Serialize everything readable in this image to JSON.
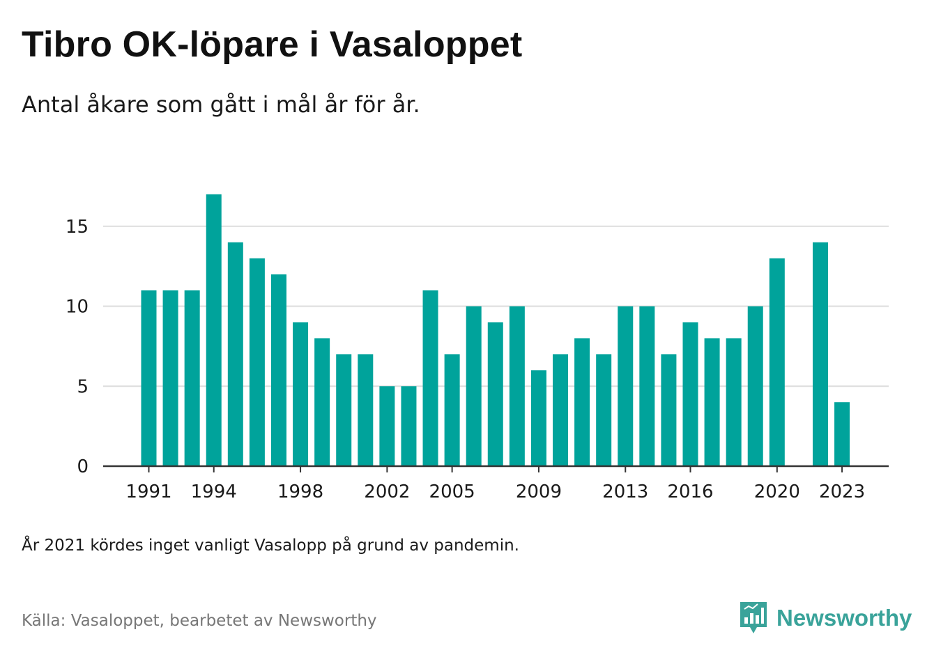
{
  "title": "Tibro OK-löpare i Vasaloppet",
  "subtitle": "Antal åkare som gått i mål år för år.",
  "note": "År 2021 kördes inget vanligt Vasalopp på grund av pandemin.",
  "source": "Källa: Vasaloppet, bearbetet av Newsworthy",
  "brand": {
    "name": "Newsworthy",
    "icon": "newsworthy-logo-icon",
    "color": "#3aa39a"
  },
  "chart_data": {
    "type": "bar",
    "title": "Tibro OK-löpare i Vasaloppet",
    "subtitle": "Antal åkare som gått i mål år för år.",
    "xlabel": "",
    "ylabel": "",
    "bar_color": "#00a39b",
    "grid": true,
    "ylim": [
      0,
      17
    ],
    "yticks": [
      0,
      5,
      10,
      15
    ],
    "xticks": [
      "1991",
      "1994",
      "1998",
      "2002",
      "2005",
      "2009",
      "2013",
      "2016",
      "2020",
      "2023"
    ],
    "categories": [
      "1991",
      "1992",
      "1993",
      "1994",
      "1995",
      "1996",
      "1997",
      "1998",
      "1999",
      "2000",
      "2001",
      "2002",
      "2003",
      "2004",
      "2005",
      "2006",
      "2007",
      "2008",
      "2009",
      "2010",
      "2011",
      "2012",
      "2013",
      "2014",
      "2015",
      "2016",
      "2017",
      "2018",
      "2019",
      "2020",
      "2021",
      "2022",
      "2023"
    ],
    "values": [
      11,
      11,
      11,
      17,
      14,
      13,
      12,
      9,
      8,
      7,
      7,
      5,
      5,
      11,
      7,
      10,
      9,
      10,
      6,
      7,
      8,
      7,
      10,
      10,
      7,
      9,
      8,
      8,
      10,
      13,
      null,
      14,
      4
    ]
  }
}
